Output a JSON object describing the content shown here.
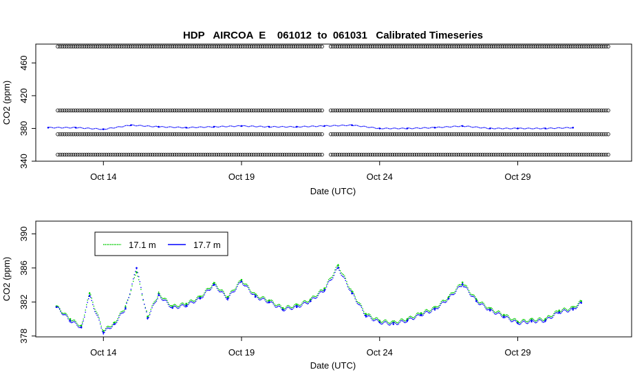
{
  "figure": {
    "title": "HDP   AIRCOA  E    061012  to  061031   Calibrated Timeseries"
  },
  "chart_data": [
    {
      "type": "scatter",
      "title": "HDP   AIRCOA  E    061012  to  061031   Calibrated Timeseries",
      "xlabel": "Date (UTC)",
      "ylabel": "CO2 (ppm)",
      "x_ticks": [
        "Oct 14",
        "Oct 19",
        "Oct 24",
        "Oct 29"
      ],
      "y_ticks": [
        "340",
        "380",
        "420",
        "460"
      ],
      "xlim": [
        "2006-10-12",
        "2006-11-01"
      ],
      "ylim": [
        340,
        483
      ],
      "grid": false,
      "calibration_standard_levels": [
        348,
        373,
        402,
        480
      ],
      "series": [
        {
          "color": "#0000ff",
          "x": [
            "2006-10-12",
            "2006-10-13",
            "2006-10-14",
            "2006-10-15",
            "2006-10-16",
            "2006-10-17",
            "2006-10-18",
            "2006-10-19",
            "2006-10-20",
            "2006-10-21",
            "2006-10-22",
            "2006-10-23",
            "2006-10-24",
            "2006-10-25",
            "2006-10-26",
            "2006-10-27",
            "2006-10-28",
            "2006-10-29",
            "2006-10-30",
            "2006-10-31"
          ],
          "y": [
            381,
            381,
            379,
            384,
            382,
            381,
            382,
            383,
            382,
            382,
            383,
            384,
            380,
            380,
            381,
            383,
            380,
            380,
            380,
            381
          ]
        }
      ]
    },
    {
      "type": "scatter",
      "xlabel": "Date (UTC)",
      "ylabel": "CO2 (ppm)",
      "x_ticks": [
        "Oct 14",
        "Oct 19",
        "Oct 24",
        "Oct 29"
      ],
      "y_ticks": [
        "378",
        "382",
        "386",
        "390"
      ],
      "xlim": [
        "2006-10-12",
        "2006-11-01"
      ],
      "ylim": [
        377.9,
        391.5
      ],
      "grid": false,
      "legend_position": "top-left",
      "series": [
        {
          "name": "17.1 m",
          "color": "#00cc00",
          "x": [
            "2006-10-12.3",
            "2006-10-12.8",
            "2006-10-13.2",
            "2006-10-13.5",
            "2006-10-14.0",
            "2006-10-14.4",
            "2006-10-14.8",
            "2006-10-15.2",
            "2006-10-15.6",
            "2006-10-16.0",
            "2006-10-16.5",
            "2006-10-17.0",
            "2006-10-17.5",
            "2006-10-18.0",
            "2006-10-18.5",
            "2006-10-19.0",
            "2006-10-19.5",
            "2006-10-20.0",
            "2006-10-20.5",
            "2006-10-21.0",
            "2006-10-21.5",
            "2006-10-22.0",
            "2006-10-22.5",
            "2006-10-23.0",
            "2006-10-23.5",
            "2006-10-24.0",
            "2006-10-24.5",
            "2006-10-25.0",
            "2006-10-25.5",
            "2006-10-26.0",
            "2006-10-26.5",
            "2006-10-27.0",
            "2006-10-27.5",
            "2006-10-28.0",
            "2006-10-28.5",
            "2006-10-29.0",
            "2006-10-29.5",
            "2006-10-30.0",
            "2006-10-30.5",
            "2006-10-31.0",
            "2006-10-31.3"
          ],
          "y": [
            381.5,
            380.0,
            379.2,
            383.0,
            378.6,
            379.6,
            381.4,
            385.5,
            380.3,
            383.0,
            381.5,
            381.8,
            382.6,
            384.2,
            382.6,
            384.6,
            382.8,
            382.2,
            381.3,
            381.6,
            382.3,
            383.6,
            386.3,
            383.2,
            380.6,
            379.8,
            379.6,
            380.0,
            380.7,
            381.3,
            382.6,
            384.3,
            382.3,
            381.2,
            380.5,
            379.7,
            379.9,
            380.0,
            381.0,
            381.3,
            382.1
          ]
        },
        {
          "name": "17.7 m",
          "color": "#0000ff",
          "x": [
            "2006-10-12.3",
            "2006-10-12.8",
            "2006-10-13.2",
            "2006-10-13.5",
            "2006-10-14.0",
            "2006-10-14.4",
            "2006-10-14.8",
            "2006-10-15.2",
            "2006-10-15.6",
            "2006-10-16.0",
            "2006-10-16.5",
            "2006-10-17.0",
            "2006-10-17.5",
            "2006-10-18.0",
            "2006-10-18.5",
            "2006-10-19.0",
            "2006-10-19.5",
            "2006-10-20.0",
            "2006-10-20.5",
            "2006-10-21.0",
            "2006-10-21.5",
            "2006-10-22.0",
            "2006-10-22.5",
            "2006-10-23.0",
            "2006-10-23.5",
            "2006-10-24.0",
            "2006-10-24.5",
            "2006-10-25.0",
            "2006-10-25.5",
            "2006-10-26.0",
            "2006-10-26.5",
            "2006-10-27.0",
            "2006-10-27.5",
            "2006-10-28.0",
            "2006-10-28.5",
            "2006-10-29.0",
            "2006-10-29.5",
            "2006-10-30.0",
            "2006-10-30.5",
            "2006-10-31.0",
            "2006-10-31.3"
          ],
          "y": [
            381.4,
            379.8,
            379.0,
            382.7,
            378.4,
            379.4,
            381.2,
            386.0,
            380.1,
            382.8,
            381.3,
            381.6,
            382.4,
            384.0,
            382.4,
            384.4,
            382.6,
            382.0,
            381.1,
            381.4,
            382.1,
            383.4,
            386.0,
            383.0,
            380.4,
            379.6,
            379.4,
            379.8,
            380.5,
            381.1,
            382.4,
            384.1,
            382.1,
            381.0,
            380.3,
            379.5,
            379.7,
            379.8,
            380.8,
            381.1,
            381.9
          ]
        }
      ]
    }
  ]
}
